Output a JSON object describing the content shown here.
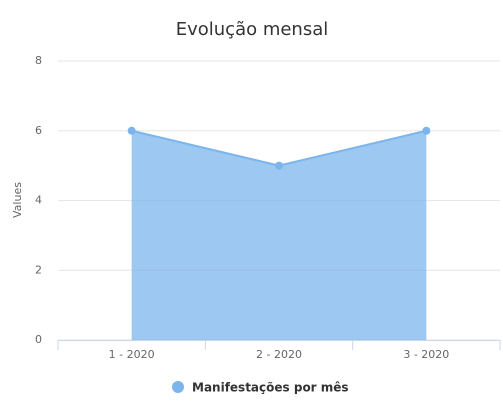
{
  "chart_data": {
    "type": "area",
    "title": "Evolução mensal",
    "y_label": "Values",
    "categories": [
      "1 - 2020",
      "2 - 2020",
      "3 - 2020"
    ],
    "series": [
      {
        "name": "Manifestações por mês",
        "color": "#7cb5ec",
        "values": [
          6,
          5,
          6
        ]
      }
    ],
    "ylim": [
      0,
      8
    ],
    "yticks": [
      0,
      2,
      4,
      6,
      8
    ],
    "grid": true,
    "legend": "bottom"
  }
}
